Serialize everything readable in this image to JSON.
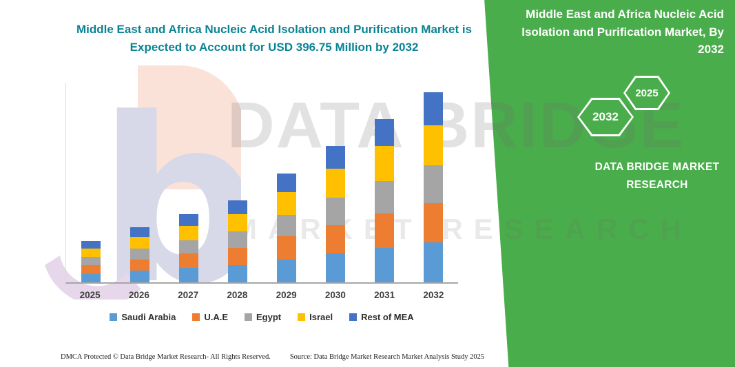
{
  "title": "Middle East and Africa Nucleic Acid Isolation and Purification Market is Expected to Account for USD 396.75 Million by 2032",
  "watermark": {
    "line1": "DATA BRIDGE",
    "line2": "MARKET RESEARCH"
  },
  "panel": {
    "title": "Middle East and Africa Nucleic Acid Isolation and Purification Market, By 2032",
    "hex_back": "2032",
    "hex_front": "2025",
    "brand": "DATA BRIDGE MARKET RESEARCH"
  },
  "footer": {
    "left": "DMCA Protected © Data Bridge Market Research-  All Rights Reserved.",
    "right": "Source: Data Bridge Market Research  Market Analysis Study 2025"
  },
  "colors": {
    "panel_green": "#4aad4b",
    "title_teal": "#0a8394",
    "axis_gray": "#a6a6a6"
  },
  "chart_data": {
    "type": "bar",
    "stacked": true,
    "title": "Middle East and Africa Nucleic Acid Isolation and Purification Market is Expected to Account for USD 396.75 Million by 2032",
    "value_unit": "USD Million",
    "categories": [
      "2025",
      "2026",
      "2027",
      "2028",
      "2029",
      "2030",
      "2031",
      "2032"
    ],
    "series": [
      {
        "name": "Saudi Arabia",
        "color": "#5B9BD5",
        "values": [
          18,
          24,
          30,
          36,
          48,
          60,
          72,
          83
        ]
      },
      {
        "name": "U.A.E",
        "color": "#ED7D31",
        "values": [
          18,
          24,
          30,
          36,
          48,
          60,
          72,
          83
        ]
      },
      {
        "name": "Egypt",
        "color": "#A5A5A5",
        "values": [
          17,
          23,
          28,
          34,
          45,
          57,
          68,
          79
        ]
      },
      {
        "name": "Israel",
        "color": "#FFC000",
        "values": [
          18,
          24,
          30,
          36,
          48,
          60,
          72,
          83
        ]
      },
      {
        "name": "Rest of MEA",
        "color": "#4472C4",
        "values": [
          15,
          20,
          24,
          29,
          38,
          48,
          57,
          68.75
        ]
      }
    ],
    "totals_estimated": [
      86,
      115,
      142,
      171,
      227,
      285,
      341,
      396.75
    ],
    "ylim": [
      0,
      400
    ],
    "y_axis_labels_visible": false,
    "grid": false,
    "legend_position": "bottom"
  }
}
